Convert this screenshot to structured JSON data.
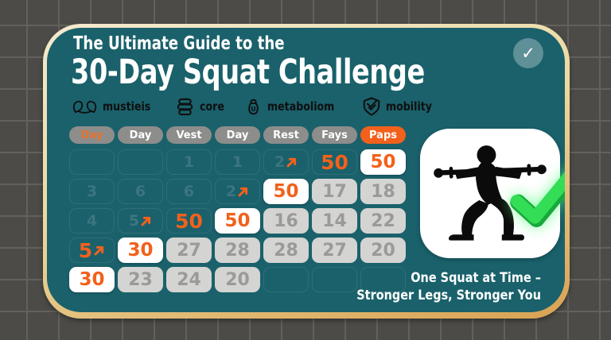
{
  "title": {
    "line1": "The Ultimate Guide to the",
    "line2": "30-Day Squat Challenge"
  },
  "top_right_badge": {
    "check": "✓"
  },
  "features": [
    {
      "icon": "muscle-icon",
      "label": "mustieis"
    },
    {
      "icon": "core-icon",
      "label": "core"
    },
    {
      "icon": "metabolism-icon",
      "label": "metaboliom"
    },
    {
      "icon": "mobility-icon",
      "label": "mobility"
    }
  ],
  "calendar": {
    "arrow_glyph": "↗",
    "headers": [
      {
        "label": "Day",
        "variant": "gray",
        "text_color": "orange"
      },
      {
        "label": "Day",
        "variant": "gray"
      },
      {
        "label": "Vest",
        "variant": "gray"
      },
      {
        "label": "Day",
        "variant": "gray"
      },
      {
        "label": "Rest",
        "variant": "gray"
      },
      {
        "label": "Fays",
        "variant": "gray"
      },
      {
        "label": "Paps",
        "variant": "orange"
      }
    ],
    "rows": [
      [
        {
          "text": "",
          "variant": "empty"
        },
        {
          "text": "",
          "variant": "empty"
        },
        {
          "text": "1",
          "variant": "plain"
        },
        {
          "text": "1",
          "variant": "plain"
        },
        {
          "text": "2",
          "variant": "plain",
          "arrow": true
        },
        {
          "text": "50",
          "variant": "orange-text"
        },
        {
          "text": "50",
          "variant": "white"
        }
      ],
      [
        {
          "text": "3",
          "variant": "plain"
        },
        {
          "text": "6",
          "variant": "plain"
        },
        {
          "text": "6",
          "variant": "plain"
        },
        {
          "text": "2",
          "variant": "plain",
          "arrow": true
        },
        {
          "text": "50",
          "variant": "white"
        },
        {
          "text": "17",
          "variant": "gray"
        },
        {
          "text": "18",
          "variant": "gray"
        }
      ],
      [
        {
          "text": "4",
          "variant": "plain"
        },
        {
          "text": "5",
          "variant": "plain",
          "arrow": true
        },
        {
          "text": "50",
          "variant": "orange-text"
        },
        {
          "text": "50",
          "variant": "white"
        },
        {
          "text": "16",
          "variant": "gray"
        },
        {
          "text": "14",
          "variant": "gray"
        },
        {
          "text": "22",
          "variant": "gray"
        }
      ],
      [
        {
          "text": "5",
          "variant": "orange-text",
          "arrow": true
        },
        {
          "text": "30",
          "variant": "white"
        },
        {
          "text": "27",
          "variant": "gray"
        },
        {
          "text": "28",
          "variant": "gray"
        },
        {
          "text": "28",
          "variant": "gray"
        },
        {
          "text": "27",
          "variant": "gray"
        },
        {
          "text": "20",
          "variant": "gray"
        }
      ],
      [
        {
          "text": "30",
          "variant": "white"
        },
        {
          "text": "23",
          "variant": "gray"
        },
        {
          "text": "24",
          "variant": "gray"
        },
        {
          "text": "20",
          "variant": "gray"
        },
        {
          "text": "",
          "variant": "empty"
        },
        {
          "text": "",
          "variant": "empty"
        },
        {
          "text": "",
          "variant": "empty"
        }
      ]
    ]
  },
  "promo": {
    "image": "squat-silhouette",
    "badge": "success-check",
    "caption_line1": "One Squat at Time –",
    "caption_line2": "Stronger Legs, Stronger You"
  },
  "colors": {
    "teal": "#1a616b",
    "orange": "#f2611c",
    "border_cream": "#ecd9a0",
    "border_gold": "#d9a253",
    "pill_gray": "#8d8d8b",
    "cell_gray": "#d4d4d2",
    "cell_gray_text": "#9a9a98",
    "faint_teal_text": "#3c7580",
    "background_gray": "#4c4b47",
    "check_green": "#33dd55",
    "white": "#ffffff"
  }
}
